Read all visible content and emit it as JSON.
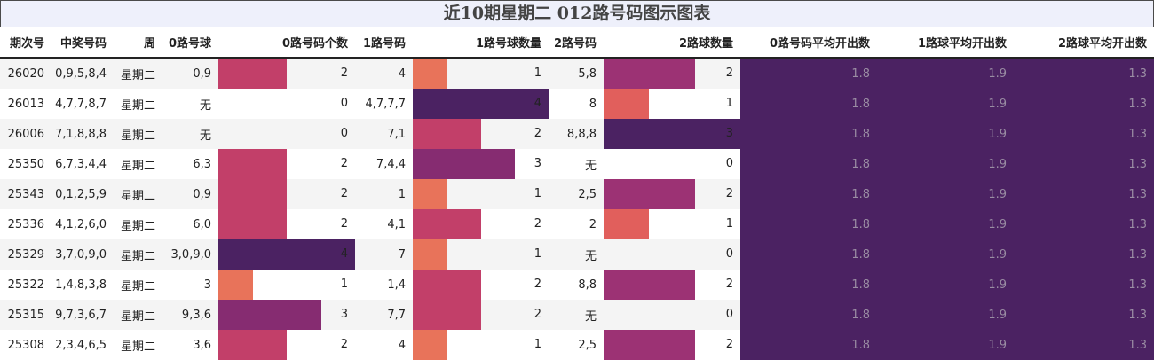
{
  "title": "近10期星期二 012路号码图示图表",
  "headers": [
    "期次号",
    "中奖号码",
    "周",
    "0路号球",
    "0路号码个数",
    "1路号码",
    "1路号球数量",
    "2路号码",
    "2路球数量",
    "0路号码平均开出数",
    "1路球平均开出数",
    "2路球平均开出数"
  ],
  "rows": [
    {
      "issue": "26020",
      "nums": "0,9,5,8,4",
      "week": "星期二",
      "r0": "0,9",
      "c0": 2,
      "r1": "4",
      "c1": 1,
      "r2": "5,8",
      "c2": 2,
      "a0": "1.8",
      "a1": "1.9",
      "a2": "1.3"
    },
    {
      "issue": "26013",
      "nums": "4,7,7,8,7",
      "week": "星期二",
      "r0": "无",
      "c0": 0,
      "r1": "4,7,7,7",
      "c1": 4,
      "r2": "8",
      "c2": 1,
      "a0": "1.8",
      "a1": "1.9",
      "a2": "1.3"
    },
    {
      "issue": "26006",
      "nums": "7,1,8,8,8",
      "week": "星期二",
      "r0": "无",
      "c0": 0,
      "r1": "7,1",
      "c1": 2,
      "r2": "8,8,8",
      "c2": 3,
      "a0": "1.8",
      "a1": "1.9",
      "a2": "1.3"
    },
    {
      "issue": "25350",
      "nums": "6,7,3,4,4",
      "week": "星期二",
      "r0": "6,3",
      "c0": 2,
      "r1": "7,4,4",
      "c1": 3,
      "r2": "无",
      "c2": 0,
      "a0": "1.8",
      "a1": "1.9",
      "a2": "1.3"
    },
    {
      "issue": "25343",
      "nums": "0,1,2,5,9",
      "week": "星期二",
      "r0": "0,9",
      "c0": 2,
      "r1": "1",
      "c1": 1,
      "r2": "2,5",
      "c2": 2,
      "a0": "1.8",
      "a1": "1.9",
      "a2": "1.3"
    },
    {
      "issue": "25336",
      "nums": "4,1,2,6,0",
      "week": "星期二",
      "r0": "6,0",
      "c0": 2,
      "r1": "4,1",
      "c1": 2,
      "r2": "2",
      "c2": 1,
      "a0": "1.8",
      "a1": "1.9",
      "a2": "1.3"
    },
    {
      "issue": "25329",
      "nums": "3,7,0,9,0",
      "week": "星期二",
      "r0": "3,0,9,0",
      "c0": 4,
      "r1": "7",
      "c1": 1,
      "r2": "无",
      "c2": 0,
      "a0": "1.8",
      "a1": "1.9",
      "a2": "1.3"
    },
    {
      "issue": "25322",
      "nums": "1,4,8,3,8",
      "week": "星期二",
      "r0": "3",
      "c0": 1,
      "r1": "1,4",
      "c1": 2,
      "r2": "8,8",
      "c2": 2,
      "a0": "1.8",
      "a1": "1.9",
      "a2": "1.3"
    },
    {
      "issue": "25315",
      "nums": "9,7,3,6,7",
      "week": "星期二",
      "r0": "9,3,6",
      "c0": 3,
      "r1": "7,7",
      "c1": 2,
      "r2": "无",
      "c2": 0,
      "a0": "1.8",
      "a1": "1.9",
      "a2": "1.3"
    },
    {
      "issue": "25308",
      "nums": "2,3,4,6,5",
      "week": "星期二",
      "r0": "3,6",
      "c0": 2,
      "r1": "4",
      "c1": 1,
      "r2": "2,5",
      "c2": 2,
      "a0": "1.8",
      "a1": "1.9",
      "a2": "1.3"
    }
  ],
  "colors": {
    "count_scale": [
      "#ffffff",
      "#e8735a",
      "#c23f69",
      "#862c71",
      "#4b2262"
    ],
    "count2_scale": [
      "#ffffff",
      "#e15f5c",
      "#9c3274",
      "#4b2262"
    ],
    "avg_bg": "#4b2262",
    "avg_text": "#9a8da3",
    "title_bg": "#eef0fb"
  }
}
